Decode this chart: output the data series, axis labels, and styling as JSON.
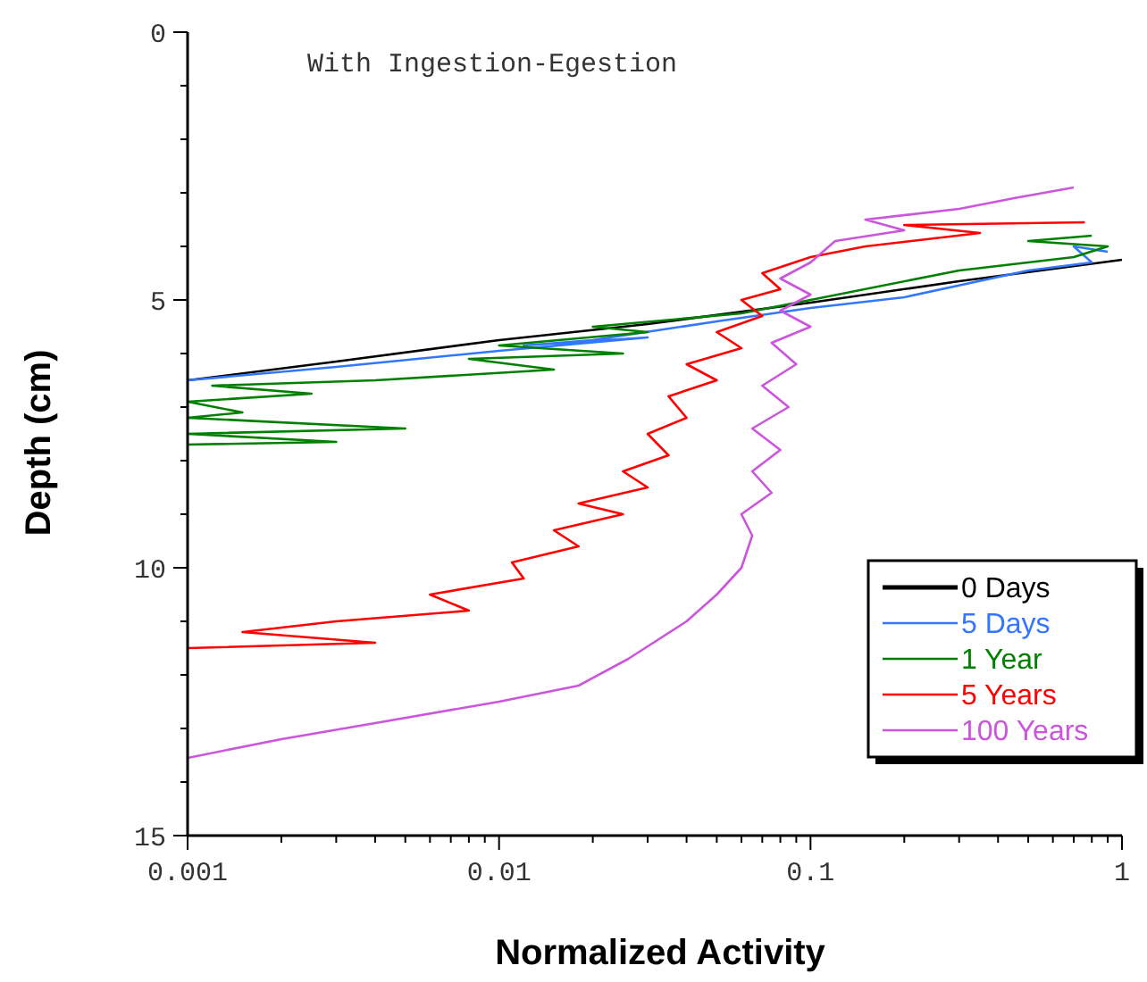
{
  "chart_data": {
    "type": "line",
    "title": "With Ingestion-Egestion",
    "xlabel": "Normalized Activity",
    "ylabel": "Depth  (cm)",
    "log": "x",
    "xlim": [
      0.001,
      1
    ],
    "ylim": [
      15,
      0
    ],
    "xticks": [
      0.001,
      {
        "value": 0.002,
        "label": null
      },
      {
        "value": 0.003,
        "label": null
      },
      {
        "value": 0.004,
        "label": null
      },
      {
        "value": 0.005,
        "label": null
      },
      {
        "value": 0.006,
        "label": null
      },
      {
        "value": 0.007,
        "label": null
      },
      {
        "value": 0.008,
        "label": null
      },
      {
        "value": 0.009,
        "label": null
      },
      0.01,
      {
        "value": 0.02,
        "label": null
      },
      {
        "value": 0.03,
        "label": null
      },
      {
        "value": 0.04,
        "label": null
      },
      {
        "value": 0.05,
        "label": null
      },
      {
        "value": 0.06,
        "label": null
      },
      {
        "value": 0.07,
        "label": null
      },
      {
        "value": 0.08,
        "label": null
      },
      {
        "value": 0.09,
        "label": null
      },
      0.1,
      {
        "value": 0.2,
        "label": null
      },
      {
        "value": 0.3,
        "label": null
      },
      {
        "value": 0.4,
        "label": null
      },
      {
        "value": 0.5,
        "label": null
      },
      {
        "value": 0.6,
        "label": null
      },
      {
        "value": 0.7,
        "label": null
      },
      {
        "value": 0.8,
        "label": null
      },
      {
        "value": 0.9,
        "label": null
      },
      1
    ],
    "yticks": [
      0,
      {
        "value": 1,
        "label": null
      },
      {
        "value": 2,
        "label": null
      },
      {
        "value": 3,
        "label": null
      },
      {
        "value": 4,
        "label": null
      },
      5,
      {
        "value": 6,
        "label": null
      },
      {
        "value": 7,
        "label": null
      },
      {
        "value": 8,
        "label": null
      },
      {
        "value": 9,
        "label": null
      },
      10,
      {
        "value": 11,
        "label": null
      },
      {
        "value": 12,
        "label": null
      },
      {
        "value": 13,
        "label": null
      },
      {
        "value": 14,
        "label": null
      },
      15
    ],
    "grid": false,
    "legend": "bottom right",
    "line_style": "solid",
    "series": [
      {
        "name": "0 Days",
        "color": "#000000",
        "x": [
          1,
          0.3,
          0.1,
          0.03,
          0.01,
          0.003,
          0.001
        ],
        "values": [
          4.25,
          4.65,
          5.05,
          5.45,
          5.75,
          6.15,
          6.5
        ]
      },
      {
        "name": "5 Days",
        "color": "#3377ff",
        "x": [
          0.9,
          0.7,
          0.8,
          0.5,
          0.2,
          0.1,
          0.05,
          0.02,
          0.012,
          0.03,
          0.01,
          0.003,
          0.001
        ],
        "values": [
          4.1,
          4.0,
          4.3,
          4.45,
          4.95,
          5.15,
          5.4,
          5.75,
          5.85,
          5.7,
          5.95,
          6.25,
          6.5
        ]
      },
      {
        "name": "1 Year",
        "color": "#008000",
        "x": [
          0.8,
          0.5,
          0.9,
          0.7,
          0.3,
          0.1,
          0.06,
          0.02,
          0.03,
          0.01,
          0.025,
          0.008,
          0.015,
          0.004,
          0.0012,
          0.0025,
          0.001,
          0.0015,
          0.001,
          0.005,
          0.001,
          0.003,
          0.001
        ],
        "values": [
          3.8,
          3.9,
          4.0,
          4.2,
          4.45,
          5.0,
          5.25,
          5.5,
          5.6,
          5.85,
          6.0,
          6.1,
          6.3,
          6.5,
          6.6,
          6.75,
          6.9,
          7.1,
          7.2,
          7.4,
          7.5,
          7.65,
          7.7
        ]
      },
      {
        "name": "5 Years",
        "color": "#ff0000",
        "x": [
          0.76,
          0.2,
          0.35,
          0.15,
          0.1,
          0.07,
          0.08,
          0.06,
          0.07,
          0.05,
          0.06,
          0.04,
          0.05,
          0.035,
          0.04,
          0.03,
          0.035,
          0.025,
          0.03,
          0.018,
          0.025,
          0.015,
          0.018,
          0.011,
          0.012,
          0.006,
          0.008,
          0.003,
          0.0015,
          0.004,
          0.001
        ],
        "values": [
          3.55,
          3.6,
          3.75,
          4.0,
          4.2,
          4.5,
          4.8,
          5.0,
          5.3,
          5.6,
          5.9,
          6.2,
          6.5,
          6.8,
          7.2,
          7.5,
          7.9,
          8.2,
          8.5,
          8.8,
          9.0,
          9.3,
          9.6,
          9.9,
          10.2,
          10.5,
          10.8,
          11.0,
          11.2,
          11.4,
          11.5
        ]
      },
      {
        "name": "100 Years",
        "color": "#cc55dd",
        "x": [
          0.7,
          0.45,
          0.3,
          0.15,
          0.2,
          0.12,
          0.1,
          0.08,
          0.1,
          0.08,
          0.1,
          0.075,
          0.09,
          0.07,
          0.085,
          0.065,
          0.08,
          0.065,
          0.075,
          0.06,
          0.065,
          0.06,
          0.05,
          0.04,
          0.026,
          0.018,
          0.01,
          0.004,
          0.002,
          0.001
        ],
        "values": [
          2.9,
          3.1,
          3.3,
          3.5,
          3.7,
          3.9,
          4.3,
          4.6,
          4.9,
          5.2,
          5.5,
          5.8,
          6.2,
          6.6,
          7.0,
          7.4,
          7.8,
          8.2,
          8.6,
          9.0,
          9.4,
          10.0,
          10.5,
          11.0,
          11.7,
          12.2,
          12.5,
          12.9,
          13.2,
          13.55
        ]
      }
    ]
  }
}
